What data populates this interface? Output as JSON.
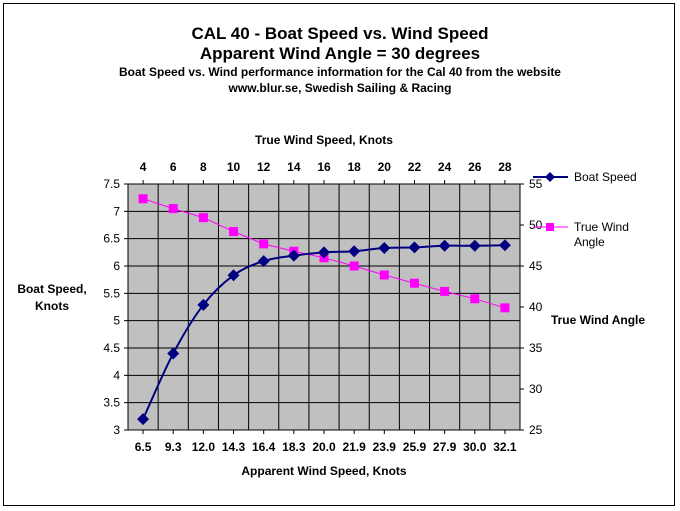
{
  "chart_data": {
    "type": "line",
    "title": "CAL 40 - Boat Speed vs. Wind Speed",
    "subtitle": "Apparent Wind Angle = 30 degrees",
    "description_lines": [
      "Boat Speed vs. Wind performance information for the Cal 40 from the website",
      "www.blur.se, Swedish Sailing & Racing"
    ],
    "xlabel": "Apparent Wind Speed, Knots",
    "x2label": "True Wind Speed, Knots",
    "ylabel": "Boat Speed, Knots",
    "y2label": "True Wind Angle",
    "categories": [
      "6.5",
      "9.3",
      "12.0",
      "14.3",
      "16.4",
      "18.3",
      "20.0",
      "21.9",
      "23.9",
      "25.9",
      "27.9",
      "30.0",
      "32.1"
    ],
    "top_categories": [
      "4",
      "6",
      "8",
      "10",
      "12",
      "14",
      "16",
      "18",
      "20",
      "22",
      "24",
      "26",
      "28"
    ],
    "ylim": [
      3,
      7.5
    ],
    "yticks": [
      "3",
      "3.5",
      "4",
      "4.5",
      "5",
      "5.5",
      "6",
      "6.5",
      "7",
      "7.5"
    ],
    "y2lim": [
      25,
      55
    ],
    "y2ticks": [
      "25",
      "30",
      "35",
      "40",
      "45",
      "50",
      "55"
    ],
    "grid": true,
    "legend": "right",
    "series": [
      {
        "name": "Boat Speed",
        "axis": "left",
        "color": "#000080",
        "marker": "diamond",
        "values": [
          3.2,
          4.4,
          5.29,
          5.83,
          6.09,
          6.19,
          6.25,
          6.27,
          6.33,
          6.34,
          6.37,
          6.37,
          6.38
        ]
      },
      {
        "name": "True Wind Angle",
        "legend_lines": [
          "True Wind",
          "Angle"
        ],
        "axis": "right",
        "color": "#ff00ff",
        "marker": "square",
        "values": [
          53.2,
          52.0,
          50.9,
          49.2,
          47.7,
          46.8,
          46.0,
          45.0,
          43.9,
          42.9,
          41.9,
          41.0,
          39.9
        ]
      }
    ]
  }
}
